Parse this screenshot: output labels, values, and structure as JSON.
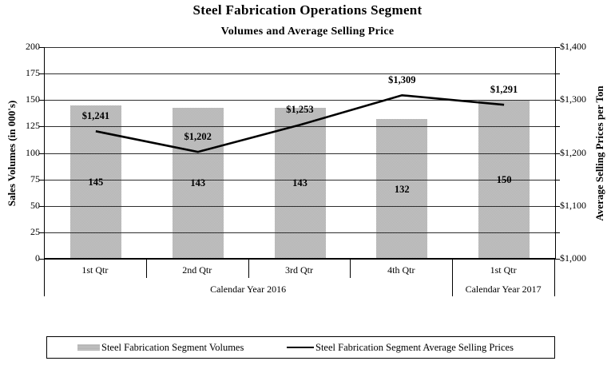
{
  "title": "Steel Fabrication Operations Segment",
  "subtitle": "Volumes and Average Selling Price",
  "left_axis": {
    "title": "Sales Volumes (in 000's)",
    "min": 0,
    "max": 200,
    "tick_step": 25,
    "ticks": [
      "200",
      "175",
      "150",
      "125",
      "100",
      "75",
      "50",
      "25",
      "0"
    ]
  },
  "right_axis": {
    "title": "Average Selling Prices per Ton",
    "min": 1000,
    "max": 1400,
    "tick_step": 100,
    "ticks": [
      "$1,400",
      "$1,300",
      "$1,200",
      "$1,100",
      "$1,000"
    ]
  },
  "x_axis": {
    "quarters": [
      "1st Qtr",
      "2nd Qtr",
      "3rd Qtr",
      "4th Qtr",
      "1st Qtr"
    ],
    "year_groups": [
      {
        "label": "Calendar Year 2016",
        "span": 4
      },
      {
        "label": "Calendar Year 2017",
        "span": 1
      }
    ]
  },
  "chart_data": [
    {
      "type": "bar",
      "name": "Steel Fabrication Segment Volumes",
      "axis": "left",
      "categories": [
        "1st Qtr 2016",
        "2nd Qtr 2016",
        "3rd Qtr 2016",
        "4th Qtr 2016",
        "1st Qtr 2017"
      ],
      "values": [
        145,
        143,
        143,
        132,
        150
      ],
      "labels": [
        "145",
        "143",
        "143",
        "132",
        "150"
      ],
      "ylim": [
        0,
        200
      ],
      "grid": true
    },
    {
      "type": "line",
      "name": "Steel Fabrication Segment Average Selling Prices",
      "axis": "right",
      "categories": [
        "1st Qtr 2016",
        "2nd Qtr 2016",
        "3rd Qtr 2016",
        "4th Qtr 2016",
        "1st Qtr 2017"
      ],
      "values": [
        1241,
        1202,
        1253,
        1309,
        1291
      ],
      "labels": [
        "$1,241",
        "$1,202",
        "$1,253",
        "$1,309",
        "$1,291"
      ],
      "ylim": [
        1000,
        1400
      ]
    }
  ],
  "legend": {
    "items": [
      {
        "swatch": "gray-bar-swatch",
        "label": "Steel Fabrication Segment Volumes"
      },
      {
        "swatch": "black-line-swatch",
        "label": "Steel Fabrication Segment Average Selling Prices"
      }
    ]
  },
  "colors": {
    "bar_fill": "#bcbcbc",
    "line": "#000000",
    "gridline": "#2f2f2f",
    "axis": "#000000"
  }
}
